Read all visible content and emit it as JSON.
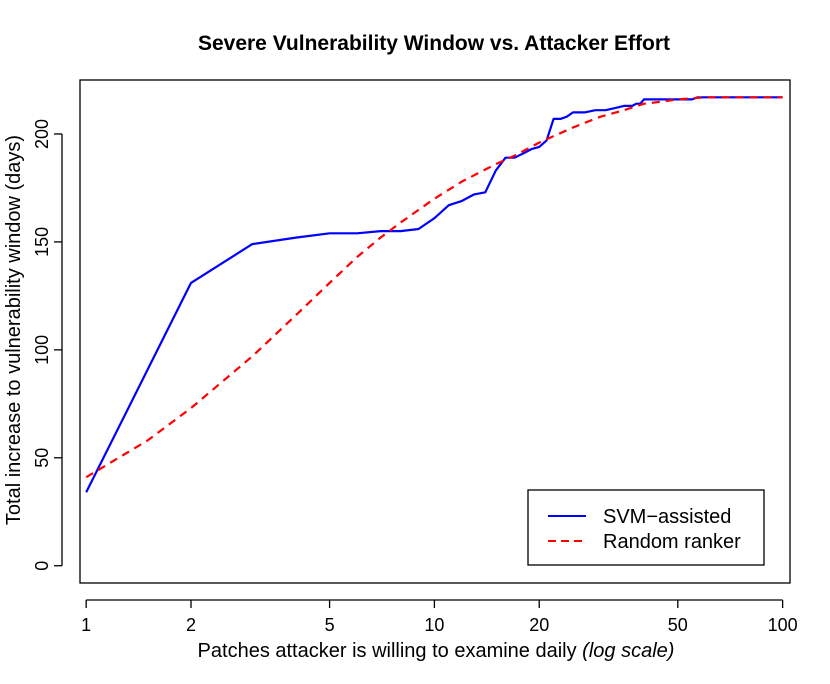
{
  "chart_data": {
    "type": "line",
    "title": "Severe Vulnerability Window vs. Attacker Effort",
    "xlabel_main": "Patches attacker is willing to examine daily ",
    "xlabel_italic": "(log scale)",
    "ylabel": "Total increase to vulnerability window (days)",
    "x_scale": "log",
    "xlim": [
      0.96,
      105
    ],
    "ylim": [
      -8,
      225
    ],
    "x_ticks": [
      1,
      2,
      5,
      10,
      20,
      50,
      100
    ],
    "x_tick_labels": [
      "1",
      "2",
      "5",
      "10",
      "20",
      "50",
      "100"
    ],
    "y_ticks": [
      0,
      50,
      100,
      150,
      200
    ],
    "y_tick_labels": [
      "0",
      "50",
      "100",
      "150",
      "200"
    ],
    "grid": false,
    "legend_position": "bottom-right",
    "series": [
      {
        "name": "SVM−assisted",
        "color": "#0000ff",
        "dash": "solid",
        "x": [
          1,
          2,
          3,
          4,
          5,
          6,
          7,
          8,
          9,
          10,
          11,
          12,
          13,
          14,
          15,
          16,
          17,
          18,
          19,
          20,
          21,
          22,
          23,
          24,
          25,
          27,
          29,
          31,
          33,
          35,
          37,
          38,
          39,
          40,
          42,
          45,
          48,
          50,
          55,
          57,
          60,
          70,
          80,
          90,
          100
        ],
        "y": [
          34,
          131,
          149,
          152,
          154,
          154,
          155,
          155,
          156,
          161,
          167,
          169,
          172,
          173,
          183,
          189,
          189,
          191,
          193,
          194,
          197,
          207,
          207,
          208,
          210,
          210,
          211,
          211,
          212,
          213,
          213,
          214,
          214,
          216,
          216,
          216,
          216,
          216,
          216,
          217,
          217,
          217,
          217,
          217,
          217
        ]
      },
      {
        "name": "Random ranker",
        "color": "#ff0000",
        "dash": "dashed",
        "x": [
          1,
          1.5,
          2,
          3,
          4,
          5,
          6,
          7,
          8,
          10,
          12,
          15,
          17,
          20,
          25,
          30,
          35,
          40,
          45,
          50,
          60,
          70,
          80,
          100
        ],
        "y": [
          41,
          58,
          73,
          97,
          116,
          131,
          143,
          152,
          159,
          170,
          178,
          186,
          190,
          196,
          203,
          208,
          211,
          214,
          215,
          216,
          217,
          217,
          217,
          217
        ]
      }
    ]
  }
}
